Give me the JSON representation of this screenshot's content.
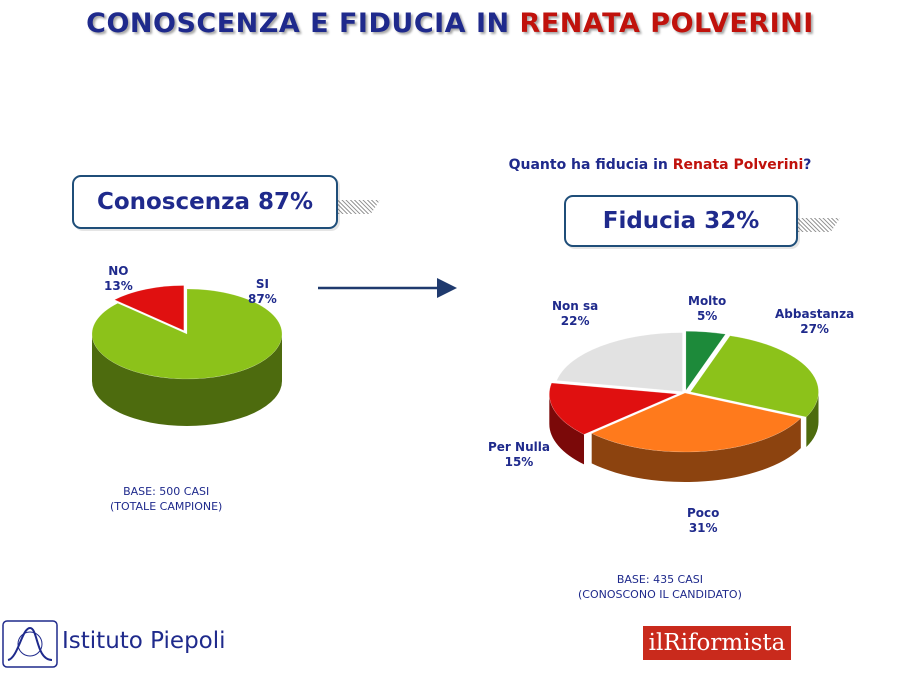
{
  "title": {
    "part1": "CONOSCENZA E FIDUCIA IN ",
    "part2": "RENATA POLVERINI"
  },
  "question": {
    "part1": "Quanto ha fiducia in ",
    "part2": "Renata Polverini",
    "part3": "?"
  },
  "callouts": {
    "conoscenza": "Conoscenza 87%",
    "fiducia": "Fiducia 32%"
  },
  "notes": {
    "base_left": [
      "BASE: 500 CASI",
      "(TOTALE CAMPIONE)"
    ],
    "base_right": [
      "BASE: 435 CASI",
      "(CONOSCONO IL CANDIDATO)"
    ]
  },
  "logos": {
    "piepoli": "Istituto Piepoli",
    "riformista_a": "il",
    "riformista_b": "Riformista"
  },
  "chart_data": [
    {
      "type": "pie",
      "title": "Conoscenza 87%",
      "labels": [
        "SI",
        "NO"
      ],
      "values": [
        87,
        13
      ],
      "value_labels": [
        "87%",
        "13%"
      ],
      "colors": [
        "#8cc21a",
        "#e01010"
      ]
    },
    {
      "type": "pie",
      "title": "Quanto ha fiducia in Renata Polverini?",
      "labels": [
        "Molto",
        "Abbastanza",
        "Poco",
        "Per Nulla",
        "Non sa"
      ],
      "values": [
        5,
        27,
        31,
        15,
        22
      ],
      "value_labels": [
        "5%",
        "27%",
        "31%",
        "15%",
        "22%"
      ],
      "colors": [
        "#1d8a3a",
        "#8cc21a",
        "#ff7a1c",
        "#e01010",
        "#e2e2e2"
      ]
    }
  ]
}
